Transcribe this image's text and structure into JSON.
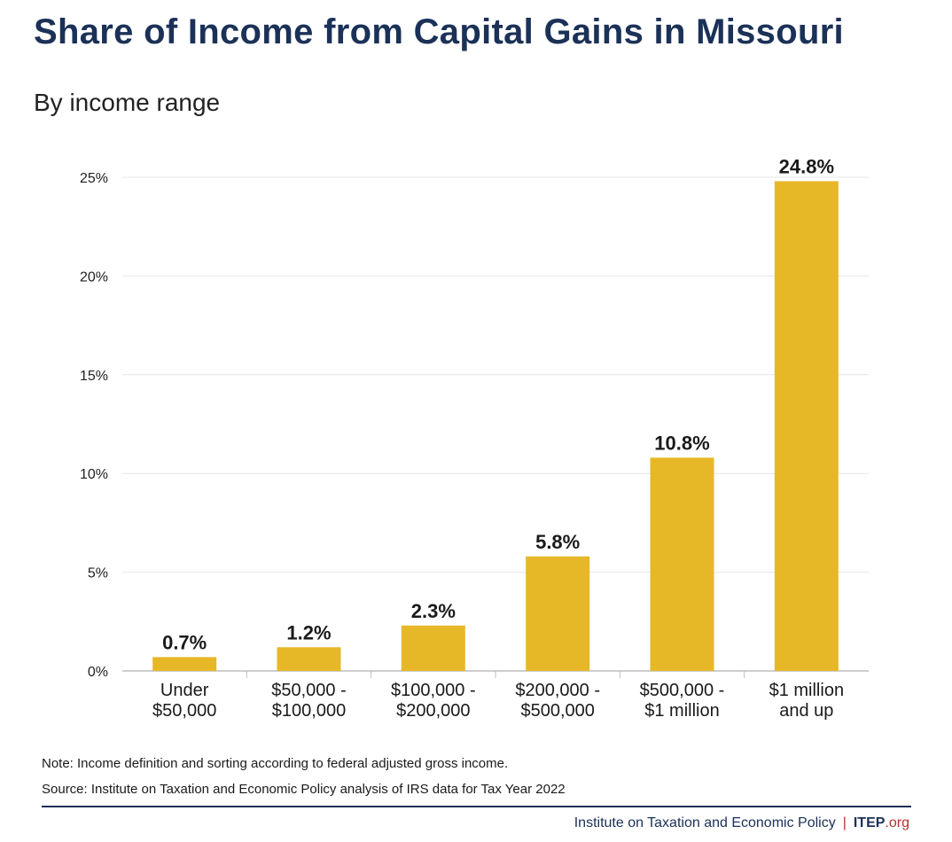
{
  "header": {
    "title": "Share of Income from Capital Gains in Missouri",
    "subtitle": "By income range"
  },
  "notes": {
    "note": "Note: Income definition and sorting according to federal adjusted gross income.",
    "source": "Source: Institute on Taxation and Economic Policy analysis of IRS data for Tax Year 2022"
  },
  "footer": {
    "org_name": "Institute on Taxation and Economic Policy",
    "separator": "|",
    "brand": "ITEP",
    "brand_suffix": ".org"
  },
  "colors": {
    "bar": "#e6b828",
    "title": "#1b3157",
    "accent": "#b5312b"
  },
  "chart_data": {
    "type": "bar",
    "title": "Share of Income from Capital Gains in Missouri",
    "subtitle": "By income range",
    "categories": [
      [
        "Under",
        "$50,000"
      ],
      [
        "$50,000 -",
        "$100,000"
      ],
      [
        "$100,000 -",
        "$200,000"
      ],
      [
        "$200,000 -",
        "$500,000"
      ],
      [
        "$500,000 -",
        "$1 million"
      ],
      [
        "$1 million",
        "and up"
      ]
    ],
    "values": [
      0.7,
      1.2,
      2.3,
      5.8,
      10.8,
      24.8
    ],
    "value_labels": [
      "0.7%",
      "1.2%",
      "2.3%",
      "5.8%",
      "10.8%",
      "24.8%"
    ],
    "yticks": [
      0,
      5,
      10,
      15,
      20,
      25
    ],
    "ytick_labels": [
      "0%",
      "5%",
      "10%",
      "15%",
      "20%",
      "25%"
    ],
    "ylim": [
      0,
      25
    ],
    "xlabel": "",
    "ylabel": "",
    "grid": true,
    "legend": "none"
  }
}
